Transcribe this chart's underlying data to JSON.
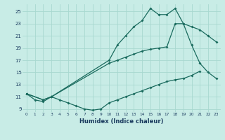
{
  "xlabel": "Humidex (Indice chaleur)",
  "xlim": [
    -0.5,
    23.5
  ],
  "ylim": [
    8.5,
    26.2
  ],
  "xticks": [
    0,
    1,
    2,
    3,
    4,
    5,
    6,
    7,
    8,
    9,
    10,
    11,
    12,
    13,
    14,
    15,
    16,
    17,
    18,
    19,
    20,
    21,
    22,
    23
  ],
  "yticks": [
    9,
    11,
    13,
    15,
    17,
    19,
    21,
    23,
    25
  ],
  "bg_color": "#c8ece6",
  "grid_color": "#a8d8d0",
  "line_color": "#1a6b5e",
  "line1_x": [
    0,
    1,
    2,
    3,
    4,
    5,
    6,
    7,
    8,
    9,
    10,
    11,
    12,
    13,
    14,
    15,
    16,
    17,
    18,
    19,
    20,
    21
  ],
  "line1_y": [
    11.5,
    10.5,
    10.2,
    11.0,
    10.5,
    10.0,
    9.5,
    9.0,
    8.8,
    9.0,
    10.0,
    10.5,
    11.0,
    11.5,
    12.0,
    12.5,
    13.0,
    13.5,
    13.8,
    14.0,
    14.5,
    15.2
  ],
  "line2_x": [
    0,
    2,
    3,
    10,
    11,
    12,
    13,
    14,
    15,
    16,
    17,
    18,
    19,
    20,
    21,
    22,
    23
  ],
  "line2_y": [
    11.5,
    10.5,
    11.0,
    17.0,
    19.5,
    21.0,
    22.5,
    23.5,
    25.5,
    24.5,
    24.5,
    25.5,
    23.0,
    19.5,
    16.5,
    15.0,
    14.0
  ],
  "line3_x": [
    0,
    2,
    3,
    10,
    11,
    12,
    13,
    14,
    15,
    16,
    17,
    18,
    19,
    20,
    21,
    22,
    23
  ],
  "line3_y": [
    11.5,
    10.5,
    11.0,
    16.5,
    17.0,
    17.5,
    18.0,
    18.5,
    18.8,
    19.0,
    19.2,
    23.0,
    23.0,
    22.5,
    22.0,
    21.0,
    20.0
  ]
}
